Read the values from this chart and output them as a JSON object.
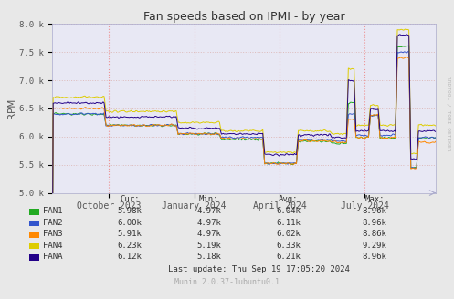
{
  "title": "Fan speeds based on IPMI - by year",
  "ylabel": "RPM",
  "background_color": "#e8e8e8",
  "plot_bg_color": "#e8e8f4",
  "grid_color_h": "#ddbbbb",
  "grid_color_v": "#ffaaaa",
  "ylim": [
    5000,
    8000
  ],
  "yticks": [
    5000,
    5500,
    6000,
    6500,
    7000,
    7500,
    8000
  ],
  "ytick_labels": [
    "5.0 k",
    "5.5 k",
    "6.0 k",
    "6.5 k",
    "7.0 k",
    "7.5 k",
    "8.0 k"
  ],
  "fans": [
    "FAN1",
    "FAN2",
    "FAN3",
    "FAN4",
    "FANA"
  ],
  "fan_colors": [
    "#22aa22",
    "#3355cc",
    "#ff8800",
    "#ddcc00",
    "#220088"
  ],
  "stats": {
    "cur": [
      "5.98k",
      "6.00k",
      "5.91k",
      "6.23k",
      "6.12k"
    ],
    "min": [
      "4.97k",
      "4.97k",
      "4.97k",
      "5.19k",
      "5.18k"
    ],
    "avg": [
      "6.04k",
      "6.11k",
      "6.02k",
      "6.33k",
      "6.21k"
    ],
    "max": [
      "8.96k",
      "8.96k",
      "8.86k",
      "9.29k",
      "8.96k"
    ]
  },
  "last_update": "Last update: Thu Sep 19 17:05:20 2024",
  "munin_version": "Munin 2.0.37-1ubuntu0.1",
  "xtick_labels": [
    "October 2023",
    "January 2024",
    "April 2024",
    "July 2024"
  ],
  "xtick_pos": [
    0.148,
    0.37,
    0.593,
    0.815
  ],
  "watermark": "RRDTOOL / TOBI OETIKER"
}
